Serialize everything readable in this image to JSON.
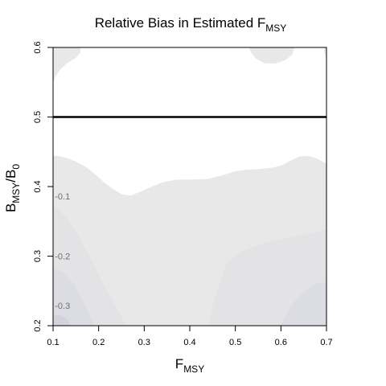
{
  "chart_data": {
    "type": "heatmap",
    "title": "Relative Bias in Estimated F",
    "title_subscript": "MSY",
    "xlabel": "F",
    "xlabel_subscript": "MSY",
    "ylabel_base": "B",
    "ylabel_sub1": "MSY",
    "ylabel_mid": "/B",
    "ylabel_sub2": "0",
    "xlim": [
      0.1,
      0.7
    ],
    "ylim": [
      0.2,
      0.6
    ],
    "x_ticks": [
      0.1,
      0.2,
      0.3,
      0.4,
      0.5,
      0.6,
      0.7
    ],
    "x_tick_labels": [
      "0.1",
      "0.2",
      "0.3",
      "0.4",
      "0.5",
      "0.6",
      "0.7"
    ],
    "y_ticks": [
      0.2,
      0.3,
      0.4,
      0.5,
      0.6
    ],
    "y_tick_labels": [
      "0.2",
      "0.3",
      "0.4",
      "0.5",
      "0.6"
    ],
    "reference_line": {
      "y": 0.5,
      "color": "#000000"
    },
    "level_colors": {
      "above_zero": "#ffffff",
      "zero_to_minus_0_1": "#e8e8e8",
      "minus_0_1_to_minus_0_2": "#e3e3e6",
      "minus_0_2_to_minus_0_3": "#dcdce3",
      "below_minus_0_3": "#d3d3de"
    },
    "regions": [
      {
        "name": "top-left negative patch",
        "color_key": "zero_to_minus_0_1",
        "points": [
          [
            0.1,
            0.6
          ],
          [
            0.16,
            0.6
          ],
          [
            0.16,
            0.593
          ],
          [
            0.15,
            0.585
          ],
          [
            0.13,
            0.577
          ],
          [
            0.115,
            0.568
          ],
          [
            0.105,
            0.558
          ],
          [
            0.1,
            0.549
          ]
        ]
      },
      {
        "name": "top-right negative patch",
        "color_key": "zero_to_minus_0_1",
        "points": [
          [
            0.53,
            0.6
          ],
          [
            0.63,
            0.6
          ],
          [
            0.625,
            0.59
          ],
          [
            0.61,
            0.582
          ],
          [
            0.59,
            0.577
          ],
          [
            0.565,
            0.577
          ],
          [
            0.545,
            0.584
          ],
          [
            0.535,
            0.592
          ]
        ]
      },
      {
        "name": "top-right corner negative patch",
        "color_key": "zero_to_minus_0_1",
        "points": [
          [
            0.695,
            0.6
          ],
          [
            0.7,
            0.6
          ],
          [
            0.7,
            0.585
          ],
          [
            0.695,
            0.592
          ]
        ]
      },
      {
        "name": "negative bias region below zero contour",
        "color_key": "zero_to_minus_0_1",
        "points": [
          [
            0.1,
            0.2
          ],
          [
            0.7,
            0.2
          ],
          [
            0.7,
            0.433
          ],
          [
            0.68,
            0.44
          ],
          [
            0.66,
            0.444
          ],
          [
            0.64,
            0.443
          ],
          [
            0.62,
            0.437
          ],
          [
            0.6,
            0.43
          ],
          [
            0.58,
            0.427
          ],
          [
            0.55,
            0.425
          ],
          [
            0.52,
            0.424
          ],
          [
            0.5,
            0.422
          ],
          [
            0.47,
            0.416
          ],
          [
            0.44,
            0.411
          ],
          [
            0.4,
            0.41
          ],
          [
            0.37,
            0.41
          ],
          [
            0.34,
            0.406
          ],
          [
            0.31,
            0.398
          ],
          [
            0.29,
            0.392
          ],
          [
            0.27,
            0.387
          ],
          [
            0.25,
            0.389
          ],
          [
            0.23,
            0.397
          ],
          [
            0.21,
            0.407
          ],
          [
            0.19,
            0.419
          ],
          [
            0.17,
            0.429
          ],
          [
            0.15,
            0.436
          ],
          [
            0.13,
            0.441
          ],
          [
            0.11,
            0.444
          ],
          [
            0.1,
            0.444
          ]
        ]
      },
      {
        "name": "bias below -0.1 (left)",
        "color_key": "minus_0_1_to_minus_0_2",
        "points": [
          [
            0.1,
            0.2
          ],
          [
            0.26,
            0.2
          ],
          [
            0.24,
            0.225
          ],
          [
            0.21,
            0.26
          ],
          [
            0.18,
            0.3
          ],
          [
            0.155,
            0.33
          ],
          [
            0.13,
            0.355
          ],
          [
            0.11,
            0.368
          ],
          [
            0.1,
            0.37
          ]
        ]
      },
      {
        "name": "bias below -0.1 (right)",
        "color_key": "minus_0_1_to_minus_0_2",
        "points": [
          [
            0.44,
            0.2
          ],
          [
            0.7,
            0.2
          ],
          [
            0.7,
            0.338
          ],
          [
            0.66,
            0.332
          ],
          [
            0.61,
            0.326
          ],
          [
            0.56,
            0.318
          ],
          [
            0.51,
            0.306
          ],
          [
            0.48,
            0.29
          ],
          [
            0.465,
            0.26
          ],
          [
            0.45,
            0.228
          ]
        ]
      },
      {
        "name": "bias below -0.2 (left)",
        "color_key": "minus_0_2_to_minus_0_3",
        "points": [
          [
            0.1,
            0.2
          ],
          [
            0.19,
            0.2
          ],
          [
            0.17,
            0.23
          ],
          [
            0.145,
            0.26
          ],
          [
            0.12,
            0.278
          ],
          [
            0.1,
            0.282
          ]
        ]
      },
      {
        "name": "bias below -0.2 (right)",
        "color_key": "minus_0_2_to_minus_0_3",
        "points": [
          [
            0.6,
            0.2
          ],
          [
            0.7,
            0.2
          ],
          [
            0.7,
            0.262
          ],
          [
            0.68,
            0.262
          ],
          [
            0.655,
            0.252
          ],
          [
            0.63,
            0.235
          ],
          [
            0.61,
            0.215
          ]
        ]
      },
      {
        "name": "bias below -0.3 (left)",
        "color_key": "below_minus_0_3",
        "points": [
          [
            0.1,
            0.2
          ],
          [
            0.14,
            0.2
          ],
          [
            0.13,
            0.21
          ],
          [
            0.115,
            0.216
          ],
          [
            0.1,
            0.215
          ]
        ]
      }
    ],
    "contour_labels": [
      {
        "text": "-0.1",
        "x": 0.104,
        "y": 0.386
      },
      {
        "text": "-0.2",
        "x": 0.104,
        "y": 0.3
      },
      {
        "text": "-0.3",
        "x": 0.104,
        "y": 0.229
      }
    ]
  }
}
